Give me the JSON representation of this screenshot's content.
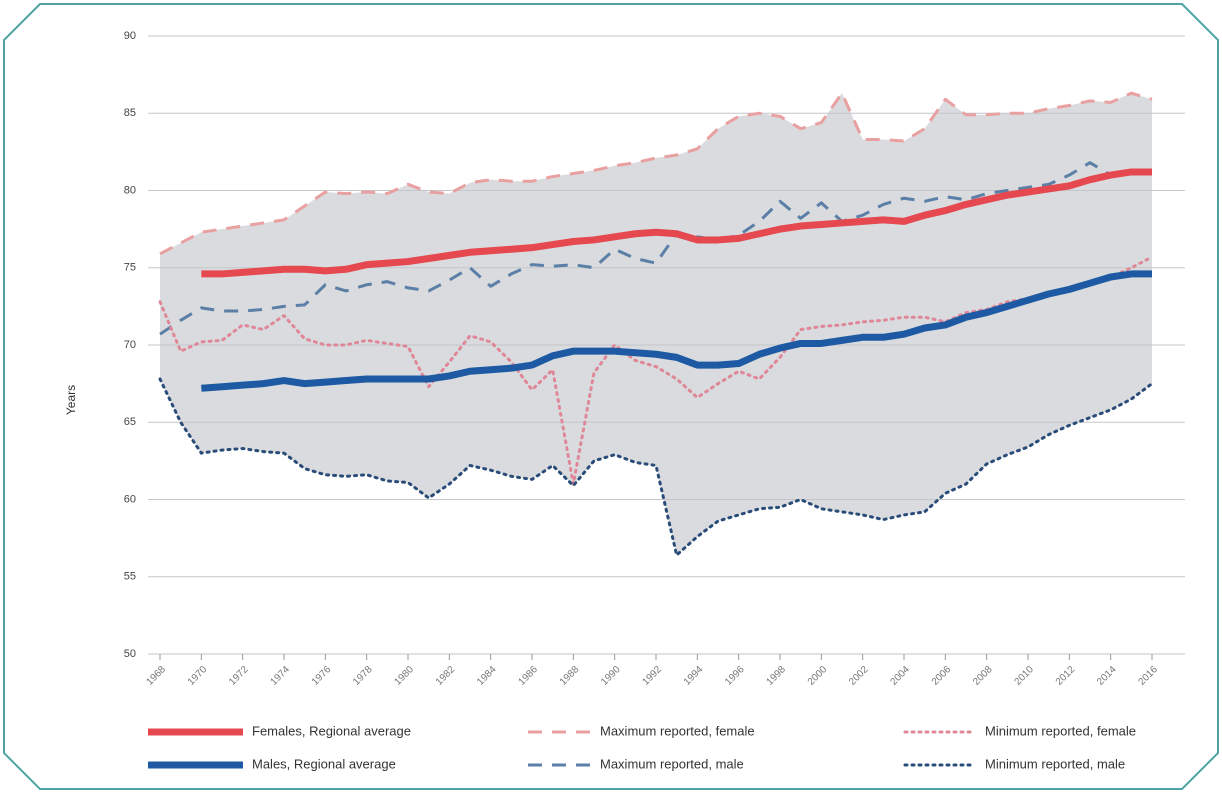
{
  "chart_data": {
    "type": "line",
    "y_label": "Years",
    "x": [
      1968,
      1969,
      1970,
      1971,
      1972,
      1973,
      1974,
      1975,
      1976,
      1977,
      1978,
      1979,
      1980,
      1981,
      1982,
      1983,
      1984,
      1985,
      1986,
      1987,
      1988,
      1989,
      1990,
      1991,
      1992,
      1993,
      1994,
      1995,
      1996,
      1997,
      1998,
      1999,
      2000,
      2001,
      2002,
      2003,
      2004,
      2005,
      2006,
      2007,
      2008,
      2009,
      2010,
      2011,
      2012,
      2013,
      2014,
      2015,
      2016
    ],
    "xlim": [
      1968,
      2016
    ],
    "xticks": [
      1968,
      1970,
      1972,
      1974,
      1976,
      1978,
      1980,
      1982,
      1984,
      1986,
      1988,
      1990,
      1992,
      1994,
      1996,
      1998,
      2000,
      2002,
      2004,
      2006,
      2008,
      2010,
      2012,
      2014,
      2016
    ],
    "ylim": [
      50,
      90
    ],
    "yticks": [
      50,
      55,
      60,
      65,
      70,
      75,
      80,
      85,
      90
    ],
    "grid": true,
    "legend": "bottom",
    "band_color": "#d9dbde",
    "series": [
      {
        "name": "Females, Regional average",
        "color": "#e5484f",
        "style": "solid",
        "values": [
          null,
          null,
          74.6,
          74.6,
          74.7,
          74.8,
          74.9,
          74.9,
          74.8,
          74.9,
          75.2,
          75.3,
          75.4,
          75.6,
          75.8,
          76.0,
          76.1,
          76.2,
          76.3,
          76.5,
          76.7,
          76.8,
          77.0,
          77.2,
          77.3,
          77.2,
          76.8,
          76.8,
          76.9,
          77.2,
          77.5,
          77.7,
          77.8,
          77.9,
          78.0,
          78.1,
          78.0,
          78.4,
          78.7,
          79.1,
          79.4,
          79.7,
          79.9,
          80.1,
          80.3,
          80.7,
          81.0,
          81.2,
          81.2
        ]
      },
      {
        "name": "Males, Regional average",
        "color": "#1d5aa3",
        "style": "solid",
        "values": [
          null,
          null,
          67.2,
          67.3,
          67.4,
          67.5,
          67.7,
          67.5,
          67.6,
          67.7,
          67.8,
          67.8,
          67.8,
          67.8,
          68.0,
          68.3,
          68.4,
          68.5,
          68.7,
          69.3,
          69.6,
          69.6,
          69.6,
          69.5,
          69.4,
          69.2,
          68.7,
          68.7,
          68.8,
          69.4,
          69.8,
          70.1,
          70.1,
          70.3,
          70.5,
          70.5,
          70.7,
          71.1,
          71.3,
          71.8,
          72.1,
          72.5,
          72.9,
          73.3,
          73.6,
          74.0,
          74.4,
          74.6,
          74.6
        ]
      },
      {
        "name": "Maximum reported, female",
        "color": "#e9a0a0",
        "style": "dashed",
        "values": [
          75.9,
          76.6,
          77.3,
          77.5,
          77.7,
          77.9,
          78.1,
          79.0,
          79.9,
          79.8,
          79.9,
          79.8,
          80.4,
          79.9,
          79.8,
          80.5,
          80.7,
          80.6,
          80.6,
          80.9,
          81.1,
          81.3,
          81.6,
          81.8,
          82.1,
          82.3,
          82.7,
          84.0,
          84.8,
          85.0,
          84.8,
          84.0,
          84.4,
          86.3,
          83.3,
          83.3,
          83.2,
          84.0,
          85.9,
          84.9,
          84.9,
          85.0,
          85.0,
          85.3,
          85.5,
          85.8,
          85.7,
          86.3,
          85.9
        ]
      },
      {
        "name": "Maximum reported, male",
        "color": "#5b7fa6",
        "style": "dashed",
        "values": [
          70.7,
          71.6,
          72.4,
          72.2,
          72.2,
          72.3,
          72.5,
          72.6,
          73.9,
          73.5,
          73.9,
          74.1,
          73.7,
          73.5,
          74.2,
          75.0,
          73.8,
          74.6,
          75.2,
          75.1,
          75.2,
          75.0,
          76.2,
          75.6,
          75.3,
          77.2,
          77.0,
          76.8,
          77.1,
          78.0,
          79.3,
          78.2,
          79.2,
          78.0,
          78.4,
          79.1,
          79.5,
          79.3,
          79.6,
          79.4,
          79.8,
          80.0,
          80.2,
          80.4,
          81.0,
          81.8,
          81.0,
          81.1,
          81.2
        ]
      },
      {
        "name": "Minimum reported, female",
        "color": "#df8797",
        "style": "dotted",
        "values": [
          72.8,
          69.6,
          70.2,
          70.3,
          71.3,
          71.0,
          71.9,
          70.4,
          70.0,
          70.0,
          70.3,
          70.1,
          69.9,
          67.3,
          68.9,
          70.6,
          70.2,
          68.9,
          67.1,
          68.4,
          61.0,
          68.2,
          70.0,
          69.0,
          68.6,
          67.8,
          66.6,
          67.5,
          68.3,
          67.8,
          69.2,
          71.0,
          71.2,
          71.3,
          71.5,
          71.6,
          71.8,
          71.8,
          71.5,
          72.1,
          72.3,
          72.8,
          73.0,
          73.3,
          73.5,
          74.0,
          74.4,
          75.0,
          75.7
        ]
      },
      {
        "name": "Minimum reported, male",
        "color": "#2a4c78",
        "style": "dotted",
        "values": [
          67.8,
          65.0,
          63.0,
          63.2,
          63.3,
          63.1,
          63.0,
          62.0,
          61.6,
          61.5,
          61.6,
          61.2,
          61.1,
          60.1,
          61.0,
          62.2,
          61.9,
          61.5,
          61.3,
          62.2,
          60.9,
          62.5,
          62.9,
          62.4,
          62.2,
          56.4,
          57.6,
          58.6,
          59.0,
          59.4,
          59.5,
          60.0,
          59.4,
          59.2,
          59.0,
          58.7,
          59.0,
          59.2,
          60.4,
          61.0,
          62.3,
          62.9,
          63.4,
          64.2,
          64.8,
          65.3,
          65.8,
          66.5,
          67.5
        ]
      }
    ]
  }
}
